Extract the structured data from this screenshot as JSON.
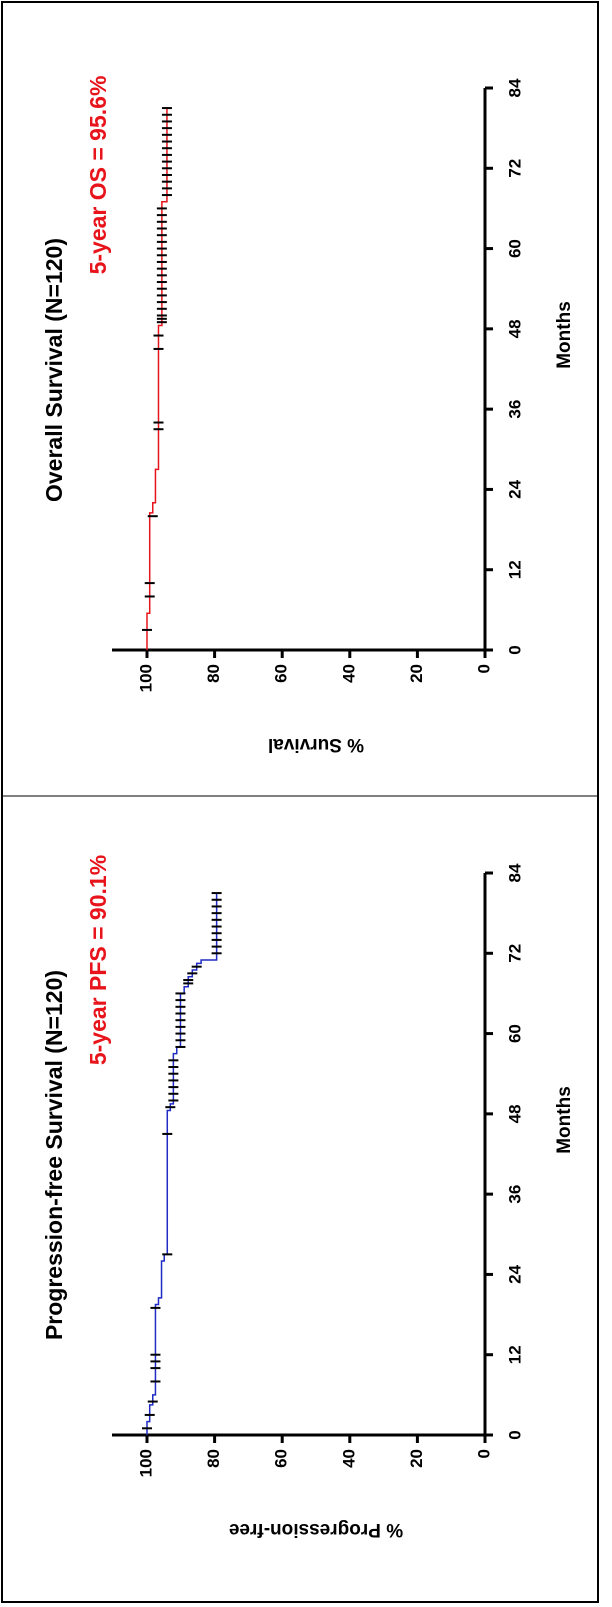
{
  "chart_data": [
    {
      "type": "line",
      "title": "Overall Survival (N=120)",
      "annotation": "5-year OS = 95.6%",
      "xlabel": "Months",
      "ylabel": "% Survival",
      "xlim": [
        0,
        84
      ],
      "xticks": [
        0,
        12,
        24,
        36,
        48,
        60,
        72,
        84
      ],
      "ylim": [
        0,
        100
      ],
      "yticks": [
        0,
        20,
        40,
        60,
        80,
        100
      ],
      "series": [
        {
          "color": "#e8141b",
          "x": [
            0,
            5.5,
            20.5,
            22,
            27,
            48.5,
            67,
            81
          ],
          "values": [
            100,
            99.2,
            98.3,
            97.5,
            96.6,
            95.6,
            94.1,
            94.1
          ],
          "censor_color": "#000000",
          "censor_x": [
            3,
            8,
            10,
            20,
            33,
            34,
            45,
            47,
            49,
            49.5,
            50,
            51,
            52,
            53,
            54,
            55,
            56,
            57,
            58,
            59,
            60,
            61,
            62,
            63,
            64,
            65,
            66,
            68,
            69,
            70,
            71,
            72,
            73,
            74,
            75,
            76,
            77,
            78,
            79,
            80,
            81
          ],
          "censor_y": [
            100,
            99.2,
            99.2,
            98.3,
            96.6,
            96.6,
            96.6,
            96.6,
            95.6,
            95.6,
            95.6,
            95.6,
            95.6,
            95.6,
            95.6,
            95.6,
            95.6,
            95.6,
            95.6,
            95.6,
            95.6,
            95.6,
            95.6,
            95.6,
            95.6,
            95.6,
            95.6,
            94.1,
            94.1,
            94.1,
            94.1,
            94.1,
            94.1,
            94.1,
            94.1,
            94.1,
            94.1,
            94.1,
            94.1,
            94.1,
            94.1
          ]
        }
      ]
    },
    {
      "type": "line",
      "title": "Progression-free Survival (N=120)",
      "annotation": "5-year PFS = 90.1%",
      "xlabel": "Months",
      "ylabel": "% Progression-free",
      "xlim": [
        0,
        84
      ],
      "xticks": [
        0,
        12,
        24,
        36,
        48,
        60,
        72,
        84
      ],
      "ylim": [
        0,
        100
      ],
      "yticks": [
        0,
        20,
        40,
        60,
        80,
        100
      ],
      "series": [
        {
          "color": "#1f2bc4",
          "x": [
            0,
            2,
            4.5,
            6,
            19.5,
            20.5,
            26,
            27,
            48.5,
            49.5,
            57,
            58,
            66,
            67,
            68.5,
            69.5,
            70.5,
            71,
            81
          ],
          "values": [
            100,
            99.2,
            98.3,
            97.5,
            96.6,
            95.7,
            94.9,
            94.0,
            93.1,
            92.2,
            91.2,
            90.1,
            89.0,
            87.8,
            86.6,
            85.3,
            84.0,
            79.4,
            79.4
          ],
          "censor_color": "#000000",
          "censor_x": [
            1,
            3,
            5,
            8,
            10,
            11,
            12,
            19,
            27,
            45,
            49,
            50,
            51,
            52,
            53,
            54,
            55,
            56,
            58,
            59,
            60,
            61,
            62,
            63,
            64,
            65,
            66,
            67.5,
            68,
            69,
            70,
            72,
            73,
            74,
            75,
            76,
            77,
            78,
            79,
            80,
            81
          ],
          "censor_y": [
            100,
            99.2,
            98.3,
            97.5,
            97.5,
            97.5,
            97.5,
            97.5,
            94.0,
            94.0,
            93.1,
            92.2,
            92.2,
            92.2,
            92.2,
            92.2,
            92.2,
            92.2,
            90.1,
            90.1,
            90.1,
            90.1,
            90.1,
            90.1,
            90.1,
            90.1,
            90.1,
            87.8,
            87.8,
            86.6,
            85.3,
            79.4,
            79.4,
            79.4,
            79.4,
            79.4,
            79.4,
            79.4,
            79.4,
            79.4,
            79.4
          ]
        }
      ]
    }
  ]
}
